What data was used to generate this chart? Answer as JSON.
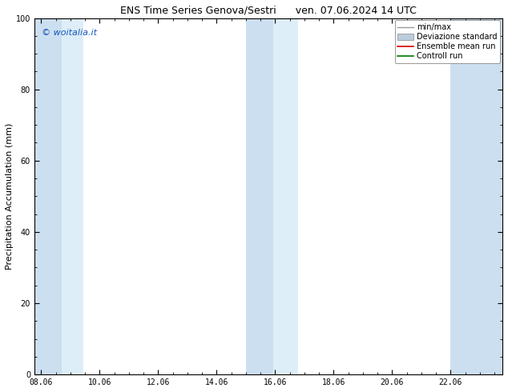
{
  "title": "ENS Time Series Genova/Sestri      ven. 07.06.2024 14 UTC",
  "ylabel": "Precipitation Accumulation (mm)",
  "ylim": [
    0,
    100
  ],
  "yticks": [
    0,
    20,
    40,
    60,
    80,
    100
  ],
  "watermark": "© woitalia.it",
  "watermark_color": "#1155bb",
  "background_color": "#ffffff",
  "plot_bg_color": "#ffffff",
  "shaded_bands": [
    {
      "xmin": 7.83,
      "xmax": 8.75,
      "color": "#ccdff0",
      "alpha": 1.0
    },
    {
      "xmin": 8.75,
      "xmax": 9.5,
      "color": "#ddeef8",
      "alpha": 1.0
    },
    {
      "xmin": 15.06,
      "xmax": 16.0,
      "color": "#ccdff0",
      "alpha": 1.0
    },
    {
      "xmin": 16.0,
      "xmax": 16.83,
      "color": "#ddeef8",
      "alpha": 1.0
    },
    {
      "xmin": 22.06,
      "xmax": 23.83,
      "color": "#ccdff0",
      "alpha": 1.0
    }
  ],
  "xtick_positions": [
    8.06,
    10.06,
    12.06,
    14.06,
    16.06,
    18.06,
    20.06,
    22.06
  ],
  "xtick_labels": [
    "08.06",
    "10.06",
    "12.06",
    "14.06",
    "16.06",
    "18.06",
    "20.06",
    "22.06"
  ],
  "xlim": [
    7.83,
    23.83
  ],
  "legend_entries": [
    {
      "label": "min/max",
      "type": "line",
      "color": "#999999",
      "lw": 1.0
    },
    {
      "label": "Deviazione standard",
      "type": "patch",
      "color": "#bbccdd"
    },
    {
      "label": "Ensemble mean run",
      "type": "line",
      "color": "#dd0000",
      "lw": 1.2
    },
    {
      "label": "Controll run",
      "type": "line",
      "color": "#007700",
      "lw": 1.2
    }
  ],
  "title_fontsize": 9,
  "tick_fontsize": 7,
  "ylabel_fontsize": 8,
  "legend_fontsize": 7
}
